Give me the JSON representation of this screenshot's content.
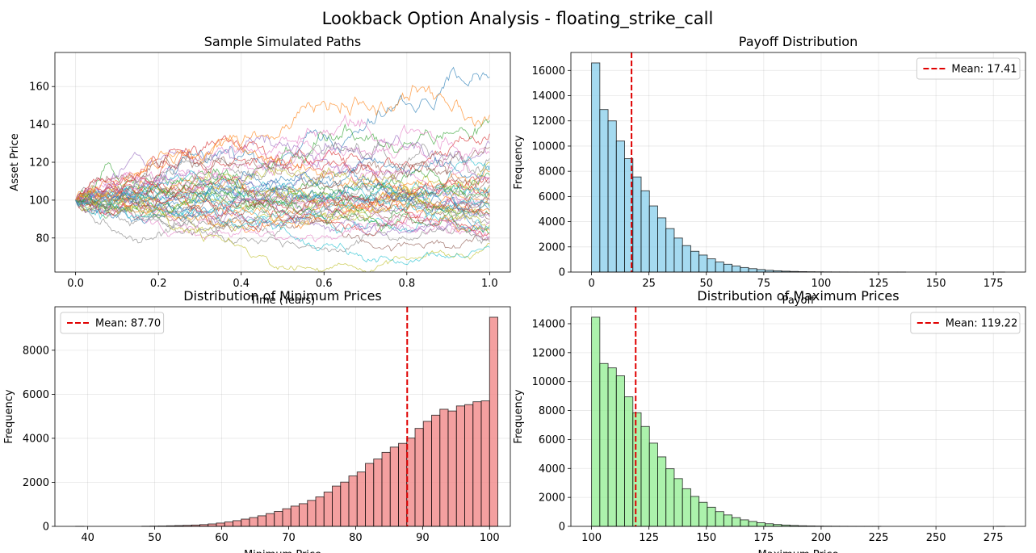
{
  "figure": {
    "suptitle": "Lookback Option Analysis - floating_strike_call"
  },
  "chart_data": [
    {
      "type": "line",
      "title": "Sample Simulated Paths",
      "xlabel": "Time (Years)",
      "ylabel": "Asset Price",
      "xlim": [
        -0.05,
        1.05
      ],
      "ylim": [
        62,
        178
      ],
      "xticks": [
        "0.0",
        "0.2",
        "0.4",
        "0.6",
        "0.8",
        "1.0"
      ],
      "yticks": [
        "80",
        "100",
        "120",
        "140",
        "160"
      ],
      "grid": true,
      "n_paths": 50,
      "start_value": 100,
      "time_steps": 252,
      "final_values": [
        165,
        145,
        142,
        135,
        130,
        128,
        125,
        122,
        120,
        118,
        116,
        115,
        113,
        112,
        111,
        110,
        109,
        108,
        107,
        106,
        105,
        104,
        103,
        102,
        101,
        100,
        99,
        98,
        97,
        96,
        95,
        94,
        93,
        92,
        91,
        90,
        89,
        88,
        87,
        86,
        85,
        84,
        83,
        82,
        81,
        80,
        79,
        78,
        77,
        75
      ],
      "colors": [
        "#1f77b4",
        "#ff7f0e",
        "#2ca02c",
        "#d62728",
        "#9467bd",
        "#8c564b",
        "#e377c2",
        "#7f7f7f",
        "#bcbd22",
        "#17becf"
      ]
    },
    {
      "type": "bar",
      "title": "Payoff Distribution",
      "xlabel": "Payoff",
      "ylabel": "Frequency",
      "bin_start": 0,
      "bin_width": 3.6,
      "values": [
        16600,
        12900,
        12000,
        10400,
        9000,
        7550,
        6450,
        5250,
        4300,
        3450,
        2700,
        2100,
        1650,
        1350,
        1050,
        800,
        620,
        480,
        360,
        270,
        200,
        140,
        100,
        70,
        50,
        35,
        25,
        18,
        12,
        8,
        6,
        4,
        3,
        2,
        1,
        1,
        1,
        1,
        0,
        0,
        0,
        0,
        0,
        0,
        0,
        0,
        0,
        0,
        0,
        1
      ],
      "xlim": [
        -9,
        189
      ],
      "ylim": [
        0,
        17430
      ],
      "xticks": [
        "0",
        "25",
        "50",
        "75",
        "100",
        "125",
        "150",
        "175"
      ],
      "yticks": [
        "0",
        "2000",
        "4000",
        "6000",
        "8000",
        "10000",
        "12000",
        "14000",
        "16000"
      ],
      "mean": 17.41,
      "legend": "Mean: 17.41",
      "legend_position": "top-right",
      "bar_color": "#87ceeb",
      "grid": true
    },
    {
      "type": "bar",
      "title": "Distribution of Minimum Prices",
      "xlabel": "Minimum Price",
      "ylabel": "Frequency",
      "bin_start": 38.2,
      "bin_width": 1.236,
      "values": [
        1,
        0,
        0,
        0,
        0,
        0,
        0,
        0,
        5,
        10,
        15,
        25,
        35,
        45,
        60,
        80,
        110,
        150,
        200,
        260,
        330,
        400,
        480,
        580,
        680,
        800,
        920,
        1030,
        1180,
        1340,
        1560,
        1830,
        2010,
        2290,
        2470,
        2860,
        3060,
        3360,
        3600,
        3770,
        4010,
        4450,
        4770,
        5050,
        5320,
        5240,
        5470,
        5530,
        5660,
        5700,
        9500
      ],
      "xlim": [
        35.1,
        103.1
      ],
      "ylim": [
        0,
        9975
      ],
      "xticks": [
        "40",
        "50",
        "60",
        "70",
        "80",
        "90",
        "100"
      ],
      "yticks": [
        "0",
        "2000",
        "4000",
        "6000",
        "8000"
      ],
      "mean": 87.7,
      "legend": "Mean: 87.70",
      "legend_position": "top-left",
      "bar_color": "#f08080",
      "grid": true
    },
    {
      "type": "bar",
      "title": "Distribution of Maximum Prices",
      "xlabel": "Maximum Price",
      "ylabel": "Frequency",
      "bin_start": 100,
      "bin_width": 3.6,
      "values": [
        14450,
        11250,
        10950,
        10400,
        8950,
        7850,
        6900,
        5750,
        4800,
        3980,
        3300,
        2600,
        2070,
        1660,
        1320,
        1020,
        790,
        600,
        450,
        340,
        250,
        180,
        130,
        90,
        60,
        40,
        28,
        18,
        12,
        8,
        5,
        3,
        2,
        1,
        1,
        0,
        0,
        0,
        0,
        0,
        0,
        0,
        0,
        0,
        0,
        0,
        0,
        0,
        0,
        1
      ],
      "xlim": [
        91,
        289
      ],
      "ylim": [
        0,
        15170
      ],
      "xticks": [
        "100",
        "125",
        "150",
        "175",
        "200",
        "225",
        "250",
        "275"
      ],
      "yticks": [
        "0",
        "2000",
        "4000",
        "6000",
        "8000",
        "10000",
        "12000",
        "14000"
      ],
      "mean": 119.22,
      "legend": "Mean: 119.22",
      "legend_position": "top-right",
      "bar_color": "#90ee90",
      "grid": true
    }
  ]
}
